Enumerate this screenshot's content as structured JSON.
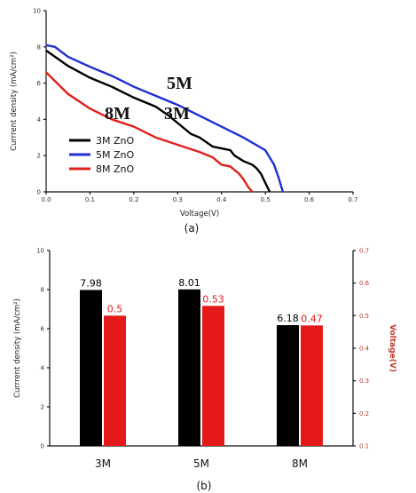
{
  "chart_data": [
    {
      "type": "line",
      "caption": "(a)",
      "xlabel": "Voltage(V)",
      "ylabel": "Currrent density (mA/cm²)",
      "xlim": [
        0,
        0.7
      ],
      "ylim": [
        0,
        10
      ],
      "xticks": [
        "0.0",
        "0.1",
        "0.2",
        "0.3",
        "0.4",
        "0.5",
        "0.6",
        "0.7"
      ],
      "yticks": [
        "0",
        "2",
        "4",
        "6",
        "8",
        "10"
      ],
      "legend_position": "bottom-left",
      "annotations": [
        "5M",
        "8M",
        "3M"
      ],
      "series": [
        {
          "name": "3M ZnO",
          "color": "#000000",
          "points": [
            [
              0.0,
              7.8
            ],
            [
              0.05,
              6.95
            ],
            [
              0.1,
              6.3
            ],
            [
              0.15,
              5.8
            ],
            [
              0.2,
              5.2
            ],
            [
              0.25,
              4.7
            ],
            [
              0.28,
              4.2
            ],
            [
              0.3,
              3.8
            ],
            [
              0.33,
              3.2
            ],
            [
              0.35,
              3.0
            ],
            [
              0.38,
              2.5
            ],
            [
              0.42,
              2.3
            ],
            [
              0.43,
              2.0
            ],
            [
              0.45,
              1.7
            ],
            [
              0.47,
              1.5
            ],
            [
              0.48,
              1.3
            ],
            [
              0.49,
              1.0
            ],
            [
              0.5,
              0.5
            ],
            [
              0.51,
              0.0
            ]
          ]
        },
        {
          "name": "5M ZnO",
          "color": "#1f2fd0",
          "points": [
            [
              0.0,
              8.1
            ],
            [
              0.02,
              8.0
            ],
            [
              0.05,
              7.45
            ],
            [
              0.1,
              6.9
            ],
            [
              0.15,
              6.4
            ],
            [
              0.2,
              5.8
            ],
            [
              0.25,
              5.3
            ],
            [
              0.3,
              4.8
            ],
            [
              0.35,
              4.2
            ],
            [
              0.4,
              3.6
            ],
            [
              0.45,
              3.0
            ],
            [
              0.5,
              2.3
            ],
            [
              0.52,
              1.5
            ],
            [
              0.53,
              0.8
            ],
            [
              0.54,
              0.0
            ]
          ]
        },
        {
          "name": "8M ZnO",
          "color": "#e0201a",
          "points": [
            [
              0.0,
              6.6
            ],
            [
              0.05,
              5.4
            ],
            [
              0.1,
              4.6
            ],
            [
              0.15,
              4.0
            ],
            [
              0.2,
              3.6
            ],
            [
              0.25,
              3.0
            ],
            [
              0.3,
              2.6
            ],
            [
              0.35,
              2.2
            ],
            [
              0.38,
              1.9
            ],
            [
              0.4,
              1.5
            ],
            [
              0.42,
              1.4
            ],
            [
              0.44,
              1.0
            ],
            [
              0.45,
              0.7
            ],
            [
              0.46,
              0.3
            ],
            [
              0.47,
              0.0
            ]
          ]
        }
      ]
    },
    {
      "type": "bar",
      "caption": "(b)",
      "categories": [
        "3M",
        "5M",
        "8M"
      ],
      "ylabel": "Currrent density (mA/cm²)",
      "ylabel_right": "Voltage(V)",
      "ylim": [
        0,
        10
      ],
      "ylim_right": [
        0.1,
        0.7
      ],
      "yticks": [
        "0",
        "2",
        "4",
        "6",
        "8",
        "10"
      ],
      "yticks_right": [
        "0.1",
        "0.2",
        "0.3",
        "0.4",
        "0.5",
        "0.6",
        "0.7"
      ],
      "series": [
        {
          "axis": "left",
          "color": "#000000",
          "values": [
            7.98,
            8.01,
            6.18
          ],
          "labels": [
            "7.98",
            "8.01",
            "6.18"
          ]
        },
        {
          "axis": "right",
          "color": "#e41a1a",
          "values": [
            0.5,
            0.53,
            0.47
          ],
          "labels": [
            "0.5",
            "0.53",
            "0.47"
          ]
        }
      ]
    }
  ]
}
